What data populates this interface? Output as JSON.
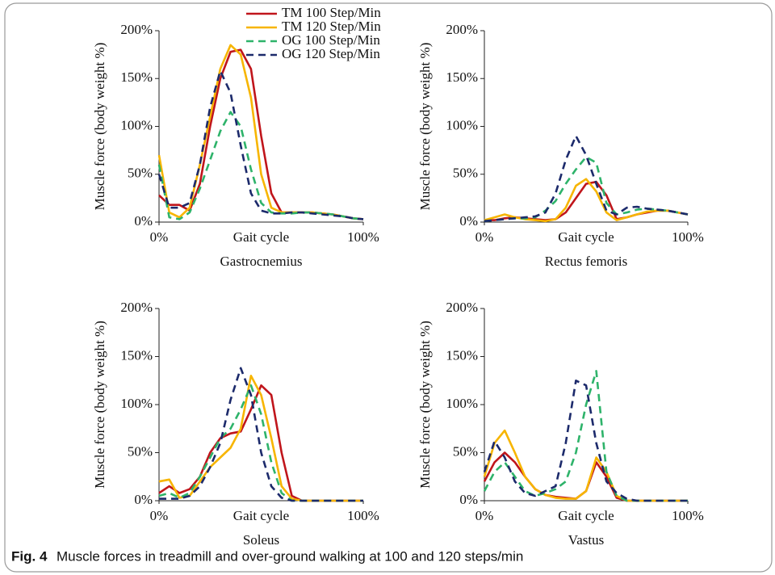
{
  "chart_data": [
    {
      "type": "line",
      "title": "Gastrocnemius",
      "xlabel": "Gait cycle",
      "ylabel": "Muscle force (body weight %)",
      "x": [
        0,
        5,
        10,
        15,
        20,
        25,
        30,
        35,
        40,
        45,
        50,
        55,
        60,
        65,
        70,
        75,
        80,
        85,
        90,
        95,
        100
      ],
      "xlim": [
        0,
        100
      ],
      "xticks": [
        {
          "value": 0,
          "label": "0%"
        },
        {
          "value": 100,
          "label": "100%"
        }
      ],
      "ylim": [
        0,
        200
      ],
      "yticks": [
        {
          "value": 0,
          "label": "0%"
        },
        {
          "value": 50,
          "label": "50%"
        },
        {
          "value": 100,
          "label": "100%"
        },
        {
          "value": 150,
          "label": "150%"
        },
        {
          "value": 200,
          "label": "200%"
        }
      ],
      "legend": "upper right",
      "series": [
        {
          "name": "TM 100 Step/Min",
          "color": "#c0151b",
          "dash": false,
          "values": [
            28,
            18,
            18,
            12,
            40,
            100,
            150,
            178,
            180,
            160,
            90,
            30,
            10,
            10,
            10,
            10,
            9,
            8,
            6,
            4,
            3
          ]
        },
        {
          "name": "TM 120 Step/Min",
          "color": "#f7b500",
          "dash": false,
          "values": [
            70,
            10,
            5,
            15,
            60,
            110,
            160,
            185,
            175,
            130,
            50,
            15,
            10,
            10,
            10,
            10,
            9,
            8,
            6,
            4,
            3
          ]
        },
        {
          "name": "OG 100 Step/Min",
          "color": "#2eb36a",
          "dash": true,
          "values": [
            60,
            5,
            3,
            10,
            35,
            65,
            95,
            115,
            100,
            55,
            20,
            10,
            9,
            9,
            10,
            10,
            9,
            8,
            6,
            4,
            3
          ]
        },
        {
          "name": "OG 120 Step/Min",
          "color": "#1c2a6b",
          "dash": true,
          "values": [
            50,
            15,
            15,
            20,
            60,
            120,
            158,
            135,
            80,
            30,
            12,
            9,
            9,
            10,
            10,
            9,
            8,
            7,
            6,
            4,
            3
          ]
        }
      ]
    },
    {
      "type": "line",
      "title": "Rectus femoris",
      "xlabel": "Gait cycle",
      "ylabel": "Muscle force (body weight %)",
      "x": [
        0,
        5,
        10,
        15,
        20,
        25,
        30,
        35,
        40,
        45,
        50,
        55,
        60,
        65,
        70,
        75,
        80,
        85,
        90,
        95,
        100
      ],
      "xlim": [
        0,
        100
      ],
      "xticks": [
        {
          "value": 0,
          "label": "0%"
        },
        {
          "value": 100,
          "label": "100%"
        }
      ],
      "ylim": [
        0,
        200
      ],
      "yticks": [
        {
          "value": 0,
          "label": "0%"
        },
        {
          "value": 50,
          "label": "50%"
        },
        {
          "value": 100,
          "label": "100%"
        },
        {
          "value": 150,
          "label": "150%"
        },
        {
          "value": 200,
          "label": "200%"
        }
      ],
      "series": [
        {
          "color": "#c0151b",
          "dash": false,
          "values": [
            2,
            2,
            4,
            5,
            4,
            3,
            2,
            3,
            10,
            25,
            40,
            42,
            28,
            3,
            5,
            8,
            10,
            12,
            12,
            10,
            8
          ]
        },
        {
          "color": "#f7b500",
          "dash": false,
          "values": [
            2,
            5,
            8,
            5,
            3,
            2,
            1,
            3,
            15,
            38,
            45,
            32,
            10,
            2,
            5,
            8,
            11,
            12,
            12,
            10,
            8
          ]
        },
        {
          "color": "#2eb36a",
          "dash": true,
          "values": [
            1,
            2,
            3,
            4,
            4,
            5,
            12,
            22,
            40,
            55,
            68,
            62,
            20,
            8,
            10,
            13,
            14,
            13,
            12,
            10,
            8
          ]
        },
        {
          "color": "#1c2a6b",
          "dash": true,
          "values": [
            1,
            2,
            3,
            4,
            5,
            6,
            10,
            30,
            65,
            90,
            70,
            40,
            12,
            8,
            15,
            16,
            14,
            13,
            12,
            10,
            8
          ]
        }
      ]
    },
    {
      "type": "line",
      "title": "Soleus",
      "xlabel": "Gait cycle",
      "ylabel": "Muscle force (body weight %)",
      "x": [
        0,
        5,
        10,
        15,
        20,
        25,
        30,
        35,
        40,
        45,
        50,
        55,
        60,
        65,
        70,
        75,
        80,
        85,
        90,
        95,
        100
      ],
      "xlim": [
        0,
        100
      ],
      "xticks": [
        {
          "value": 0,
          "label": "0%"
        },
        {
          "value": 100,
          "label": "100%"
        }
      ],
      "ylim": [
        0,
        200
      ],
      "yticks": [
        {
          "value": 0,
          "label": "0%"
        },
        {
          "value": 50,
          "label": "50%"
        },
        {
          "value": 100,
          "label": "100%"
        },
        {
          "value": 150,
          "label": "150%"
        },
        {
          "value": 200,
          "label": "200%"
        }
      ],
      "series": [
        {
          "color": "#c0151b",
          "dash": false,
          "values": [
            8,
            15,
            8,
            12,
            25,
            50,
            65,
            70,
            72,
            95,
            120,
            110,
            50,
            5,
            0,
            0,
            0,
            0,
            0,
            0,
            0
          ]
        },
        {
          "color": "#f7b500",
          "dash": false,
          "values": [
            20,
            22,
            3,
            5,
            20,
            35,
            45,
            55,
            75,
            130,
            110,
            65,
            15,
            2,
            0,
            0,
            0,
            0,
            0,
            0,
            0
          ]
        },
        {
          "color": "#2eb36a",
          "dash": true,
          "values": [
            5,
            8,
            3,
            8,
            25,
            45,
            65,
            75,
            95,
            120,
            90,
            40,
            8,
            0,
            0,
            0,
            0,
            0,
            0,
            0,
            0
          ]
        },
        {
          "color": "#1c2a6b",
          "dash": true,
          "values": [
            2,
            2,
            2,
            5,
            15,
            35,
            60,
            105,
            138,
            110,
            50,
            15,
            3,
            0,
            0,
            0,
            0,
            0,
            0,
            0,
            0
          ]
        }
      ]
    },
    {
      "type": "line",
      "title": "Vastus",
      "xlabel": "Gait cycle",
      "ylabel": "Muscle force (body weight %)",
      "x": [
        0,
        5,
        10,
        15,
        20,
        25,
        30,
        35,
        40,
        45,
        50,
        55,
        60,
        65,
        70,
        75,
        80,
        85,
        90,
        95,
        100
      ],
      "xlim": [
        0,
        100
      ],
      "xticks": [
        {
          "value": 0,
          "label": "0%"
        },
        {
          "value": 100,
          "label": "100%"
        }
      ],
      "ylim": [
        0,
        200
      ],
      "yticks": [
        {
          "value": 0,
          "label": "0%"
        },
        {
          "value": 50,
          "label": "50%"
        },
        {
          "value": 100,
          "label": "100%"
        },
        {
          "value": 150,
          "label": "150%"
        },
        {
          "value": 200,
          "label": "200%"
        }
      ],
      "series": [
        {
          "color": "#c0151b",
          "dash": false,
          "values": [
            20,
            40,
            50,
            40,
            25,
            12,
            6,
            4,
            3,
            2,
            10,
            40,
            25,
            3,
            0,
            0,
            0,
            0,
            0,
            0,
            0
          ]
        },
        {
          "color": "#f7b500",
          "dash": false,
          "values": [
            25,
            60,
            73,
            50,
            25,
            12,
            6,
            3,
            2,
            2,
            10,
            45,
            30,
            5,
            0,
            0,
            0,
            0,
            0,
            0,
            0
          ]
        },
        {
          "color": "#2eb36a",
          "dash": true,
          "values": [
            10,
            30,
            40,
            25,
            10,
            5,
            8,
            12,
            20,
            50,
            100,
            135,
            30,
            5,
            0,
            0,
            0,
            0,
            0,
            0,
            0
          ]
        },
        {
          "color": "#1c2a6b",
          "dash": true,
          "values": [
            30,
            62,
            45,
            20,
            8,
            5,
            10,
            15,
            60,
            125,
            120,
            60,
            20,
            8,
            2,
            0,
            0,
            0,
            0,
            0,
            0
          ]
        }
      ]
    }
  ],
  "caption": {
    "label": "Fig. 4",
    "text": "Muscle forces in treadmill and over-ground walking at 100 and 120 steps/min"
  }
}
